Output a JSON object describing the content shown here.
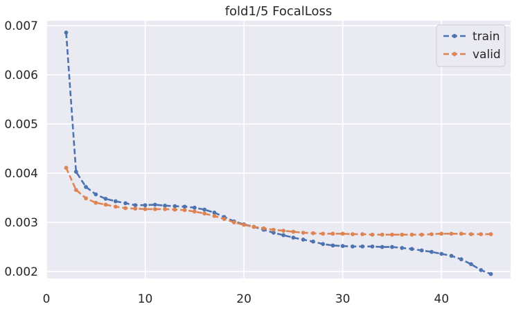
{
  "chart_data": {
    "type": "line",
    "title": "fold1/5 FocalLoss",
    "xlabel": "",
    "ylabel": "",
    "xlim": [
      0,
      47
    ],
    "ylim": [
      0.00186,
      0.0071
    ],
    "x_ticks": [
      0,
      10,
      20,
      30,
      40
    ],
    "y_ticks": [
      0.002,
      0.003,
      0.004,
      0.005,
      0.006,
      0.007
    ],
    "x_tick_labels": [
      "0",
      "10",
      "20",
      "30",
      "40"
    ],
    "y_tick_labels": [
      "0.002",
      "0.003",
      "0.004",
      "0.005",
      "0.006",
      "0.007"
    ],
    "grid": true,
    "legend_position": "top-right",
    "x": [
      2,
      3,
      4,
      5,
      6,
      7,
      8,
      9,
      10,
      11,
      12,
      13,
      14,
      15,
      16,
      17,
      18,
      19,
      20,
      21,
      22,
      23,
      24,
      25,
      26,
      27,
      28,
      29,
      30,
      31,
      32,
      33,
      34,
      35,
      36,
      37,
      38,
      39,
      40,
      41,
      42,
      43,
      44,
      45
    ],
    "series": [
      {
        "name": "train",
        "color": "#4c72b0",
        "values": [
          0.00686,
          0.00403,
          0.00372,
          0.00357,
          0.00348,
          0.00343,
          0.00339,
          0.00335,
          0.00335,
          0.00336,
          0.00334,
          0.00333,
          0.00332,
          0.0033,
          0.00326,
          0.0032,
          0.00311,
          0.00302,
          0.00296,
          0.00291,
          0.00285,
          0.00279,
          0.00274,
          0.00269,
          0.00265,
          0.00261,
          0.00256,
          0.00253,
          0.00252,
          0.00251,
          0.00251,
          0.00251,
          0.0025,
          0.0025,
          0.00248,
          0.00246,
          0.00243,
          0.0024,
          0.00236,
          0.00232,
          0.00225,
          0.00215,
          0.00203,
          0.00195
        ]
      },
      {
        "name": "valid",
        "color": "#dd8452",
        "values": [
          0.00411,
          0.00366,
          0.00349,
          0.0034,
          0.00336,
          0.00332,
          0.00329,
          0.00328,
          0.00327,
          0.00327,
          0.00327,
          0.00326,
          0.00325,
          0.00322,
          0.00318,
          0.00313,
          0.00307,
          0.003,
          0.00295,
          0.00291,
          0.00288,
          0.00285,
          0.00283,
          0.00281,
          0.00279,
          0.00278,
          0.00277,
          0.00277,
          0.00277,
          0.00276,
          0.00276,
          0.00275,
          0.00275,
          0.00275,
          0.00275,
          0.00275,
          0.00275,
          0.00276,
          0.00277,
          0.00277,
          0.00277,
          0.00276,
          0.00276,
          0.00276
        ]
      }
    ]
  }
}
